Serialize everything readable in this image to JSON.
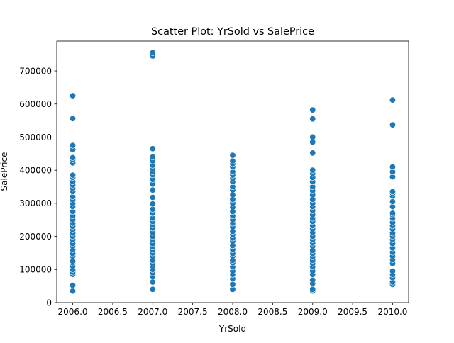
{
  "chart_data": {
    "type": "scatter",
    "title": "Scatter Plot: YrSold vs SalePrice",
    "xlabel": "YrSold",
    "ylabel": "SalePrice",
    "xlim": [
      2005.8,
      2010.2
    ],
    "ylim": [
      0,
      790000
    ],
    "xticks": [
      2006.0,
      2006.5,
      2007.0,
      2007.5,
      2008.0,
      2008.5,
      2009.0,
      2009.5,
      2010.0
    ],
    "xtick_labels": [
      "2006.0",
      "2006.5",
      "2007.0",
      "2007.5",
      "2008.0",
      "2008.5",
      "2009.0",
      "2009.5",
      "2010.0"
    ],
    "yticks": [
      0,
      100000,
      200000,
      300000,
      400000,
      500000,
      600000,
      700000
    ],
    "ytick_labels": [
      "0",
      "100000",
      "200000",
      "300000",
      "400000",
      "500000",
      "600000",
      "700000"
    ],
    "grid": false,
    "marker_color": "#1f77b4",
    "series": [
      {
        "points": [
          [
            2006,
            35000
          ],
          [
            2006,
            52000
          ],
          [
            2006,
            85000
          ],
          [
            2006,
            92000
          ],
          [
            2006,
            100000
          ],
          [
            2006,
            110000
          ],
          [
            2006,
            120000
          ],
          [
            2006,
            125000
          ],
          [
            2006,
            140000
          ],
          [
            2006,
            148000
          ],
          [
            2006,
            160000
          ],
          [
            2006,
            170000
          ],
          [
            2006,
            178000
          ],
          [
            2006,
            190000
          ],
          [
            2006,
            200000
          ],
          [
            2006,
            210000
          ],
          [
            2006,
            220000
          ],
          [
            2006,
            230000
          ],
          [
            2006,
            240000
          ],
          [
            2006,
            250000
          ],
          [
            2006,
            262000
          ],
          [
            2006,
            275000
          ],
          [
            2006,
            290000
          ],
          [
            2006,
            300000
          ],
          [
            2006,
            310000
          ],
          [
            2006,
            320000
          ],
          [
            2006,
            335000
          ],
          [
            2006,
            345000
          ],
          [
            2006,
            355000
          ],
          [
            2006,
            365000
          ],
          [
            2006,
            378000
          ],
          [
            2006,
            385000
          ],
          [
            2006,
            422000
          ],
          [
            2006,
            432000
          ],
          [
            2006,
            438000
          ],
          [
            2006,
            462000
          ],
          [
            2006,
            475000
          ],
          [
            2006,
            556000
          ],
          [
            2006,
            625000
          ],
          [
            2007,
            40000
          ],
          [
            2007,
            62000
          ],
          [
            2007,
            80000
          ],
          [
            2007,
            90000
          ],
          [
            2007,
            100000
          ],
          [
            2007,
            110000
          ],
          [
            2007,
            118000
          ],
          [
            2007,
            128000
          ],
          [
            2007,
            140000
          ],
          [
            2007,
            150000
          ],
          [
            2007,
            160000
          ],
          [
            2007,
            168000
          ],
          [
            2007,
            178000
          ],
          [
            2007,
            190000
          ],
          [
            2007,
            200000
          ],
          [
            2007,
            212000
          ],
          [
            2007,
            225000
          ],
          [
            2007,
            235000
          ],
          [
            2007,
            245000
          ],
          [
            2007,
            255000
          ],
          [
            2007,
            270000
          ],
          [
            2007,
            282000
          ],
          [
            2007,
            298000
          ],
          [
            2007,
            318000
          ],
          [
            2007,
            340000
          ],
          [
            2007,
            358000
          ],
          [
            2007,
            372000
          ],
          [
            2007,
            386000
          ],
          [
            2007,
            395000
          ],
          [
            2007,
            405000
          ],
          [
            2007,
            415000
          ],
          [
            2007,
            428000
          ],
          [
            2007,
            440000
          ],
          [
            2007,
            465000
          ],
          [
            2007,
            745000
          ],
          [
            2007,
            755000
          ],
          [
            2008,
            40000
          ],
          [
            2008,
            55000
          ],
          [
            2008,
            72000
          ],
          [
            2008,
            85000
          ],
          [
            2008,
            95000
          ],
          [
            2008,
            108000
          ],
          [
            2008,
            120000
          ],
          [
            2008,
            128000
          ],
          [
            2008,
            140000
          ],
          [
            2008,
            148000
          ],
          [
            2008,
            160000
          ],
          [
            2008,
            172000
          ],
          [
            2008,
            185000
          ],
          [
            2008,
            195000
          ],
          [
            2008,
            205000
          ],
          [
            2008,
            215000
          ],
          [
            2008,
            228000
          ],
          [
            2008,
            240000
          ],
          [
            2008,
            250000
          ],
          [
            2008,
            262000
          ],
          [
            2008,
            275000
          ],
          [
            2008,
            288000
          ],
          [
            2008,
            300000
          ],
          [
            2008,
            312000
          ],
          [
            2008,
            325000
          ],
          [
            2008,
            340000
          ],
          [
            2008,
            350000
          ],
          [
            2008,
            365000
          ],
          [
            2008,
            375000
          ],
          [
            2008,
            385000
          ],
          [
            2008,
            395000
          ],
          [
            2008,
            410000
          ],
          [
            2008,
            420000
          ],
          [
            2008,
            428000
          ],
          [
            2008,
            445000
          ],
          [
            2009,
            35000
          ],
          [
            2009,
            40000
          ],
          [
            2009,
            58000
          ],
          [
            2009,
            68000
          ],
          [
            2009,
            85000
          ],
          [
            2009,
            95000
          ],
          [
            2009,
            108000
          ],
          [
            2009,
            118000
          ],
          [
            2009,
            128000
          ],
          [
            2009,
            138000
          ],
          [
            2009,
            148000
          ],
          [
            2009,
            158000
          ],
          [
            2009,
            170000
          ],
          [
            2009,
            180000
          ],
          [
            2009,
            190000
          ],
          [
            2009,
            200000
          ],
          [
            2009,
            212000
          ],
          [
            2009,
            222000
          ],
          [
            2009,
            232000
          ],
          [
            2009,
            245000
          ],
          [
            2009,
            255000
          ],
          [
            2009,
            265000
          ],
          [
            2009,
            278000
          ],
          [
            2009,
            290000
          ],
          [
            2009,
            300000
          ],
          [
            2009,
            312000
          ],
          [
            2009,
            325000
          ],
          [
            2009,
            338000
          ],
          [
            2009,
            350000
          ],
          [
            2009,
            365000
          ],
          [
            2009,
            378000
          ],
          [
            2009,
            390000
          ],
          [
            2009,
            400000
          ],
          [
            2009,
            452000
          ],
          [
            2009,
            485000
          ],
          [
            2009,
            500000
          ],
          [
            2009,
            555000
          ],
          [
            2009,
            582000
          ],
          [
            2010,
            55000
          ],
          [
            2010,
            62000
          ],
          [
            2010,
            75000
          ],
          [
            2010,
            85000
          ],
          [
            2010,
            95000
          ],
          [
            2010,
            118000
          ],
          [
            2010,
            130000
          ],
          [
            2010,
            140000
          ],
          [
            2010,
            152000
          ],
          [
            2010,
            165000
          ],
          [
            2010,
            178000
          ],
          [
            2010,
            190000
          ],
          [
            2010,
            200000
          ],
          [
            2010,
            210000
          ],
          [
            2010,
            222000
          ],
          [
            2010,
            232000
          ],
          [
            2010,
            242000
          ],
          [
            2010,
            255000
          ],
          [
            2010,
            265000
          ],
          [
            2010,
            270000
          ],
          [
            2010,
            290000
          ],
          [
            2010,
            305000
          ],
          [
            2010,
            322000
          ],
          [
            2010,
            330000
          ],
          [
            2010,
            335000
          ],
          [
            2010,
            380000
          ],
          [
            2010,
            395000
          ],
          [
            2010,
            410000
          ],
          [
            2010,
            537000
          ],
          [
            2010,
            612000
          ]
        ]
      }
    ]
  }
}
